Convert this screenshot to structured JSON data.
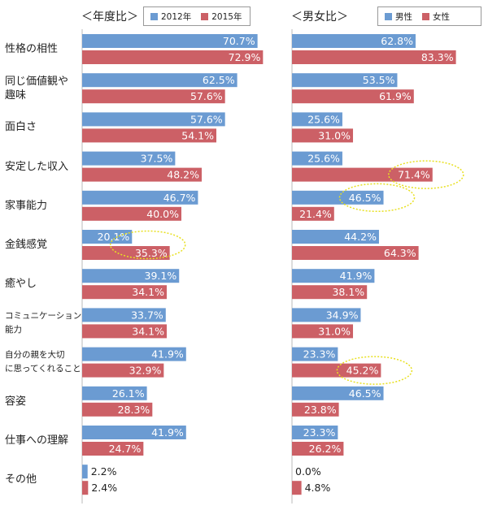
{
  "colors": {
    "blue": "#6b9bd2",
    "red": "#cc6066",
    "highlight": "#e8e020"
  },
  "chart_data": [
    {
      "type": "bar",
      "title": "＜年度比＞",
      "orientation": "horizontal",
      "xlim": [
        0,
        100
      ],
      "categories": [
        "性格の相性",
        "同じ価値観や\n趣味",
        "面白さ",
        "安定した収入",
        "家事能力",
        "金銭感覚",
        "癒やし",
        "コミュニケーション\n能力",
        "自分の親を大切\nに思ってくれること",
        "容姿",
        "仕事への理解",
        "その他"
      ],
      "series": [
        {
          "name": "2012年",
          "color": "#6b9bd2",
          "values": [
            70.7,
            62.5,
            57.6,
            37.5,
            46.7,
            20.1,
            39.1,
            33.7,
            41.9,
            26.1,
            41.9,
            2.2
          ],
          "labels": [
            "70.7%",
            "62.5%",
            "57.6%",
            "37.5%",
            "46.7%",
            "20.1%",
            "39.1%",
            "33.7%",
            "41.9%",
            "26.1%",
            "41.9%",
            "2.2%"
          ]
        },
        {
          "name": "2015年",
          "color": "#cc6066",
          "values": [
            72.9,
            57.6,
            54.1,
            48.2,
            40.0,
            35.3,
            34.1,
            34.1,
            32.9,
            28.3,
            24.7,
            2.4
          ],
          "labels": [
            "72.9%",
            "57.6%",
            "54.1%",
            "48.2%",
            "40.0%",
            "35.3%",
            "34.1%",
            "34.1%",
            "32.9%",
            "28.3%",
            "24.7%",
            "2.4%"
          ]
        }
      ],
      "highlights": [
        5
      ]
    },
    {
      "type": "bar",
      "title": "＜男女比＞",
      "orientation": "horizontal",
      "xlim": [
        0,
        100
      ],
      "series": [
        {
          "name": "男性",
          "color": "#6b9bd2",
          "values": [
            62.8,
            53.5,
            25.6,
            25.6,
            46.5,
            44.2,
            41.9,
            34.9,
            23.3,
            46.5,
            23.3,
            0.0
          ],
          "labels": [
            "62.8%",
            "53.5%",
            "25.6%",
            "25.6%",
            "46.5%",
            "44.2%",
            "41.9%",
            "34.9%",
            "23.3%",
            "46.5%",
            "23.3%",
            "0.0%"
          ]
        },
        {
          "name": "女性",
          "color": "#cc6066",
          "values": [
            83.3,
            61.9,
            31.0,
            71.4,
            21.4,
            64.3,
            38.1,
            31.0,
            45.2,
            23.8,
            26.2,
            4.8
          ],
          "labels": [
            "83.3%",
            "61.9%",
            "31.0%",
            "71.4%",
            "21.4%",
            "64.3%",
            "38.1%",
            "31.0%",
            "45.2%",
            "23.8%",
            "26.2%",
            "4.8%"
          ]
        }
      ],
      "highlights": [
        3,
        4,
        8
      ]
    }
  ]
}
